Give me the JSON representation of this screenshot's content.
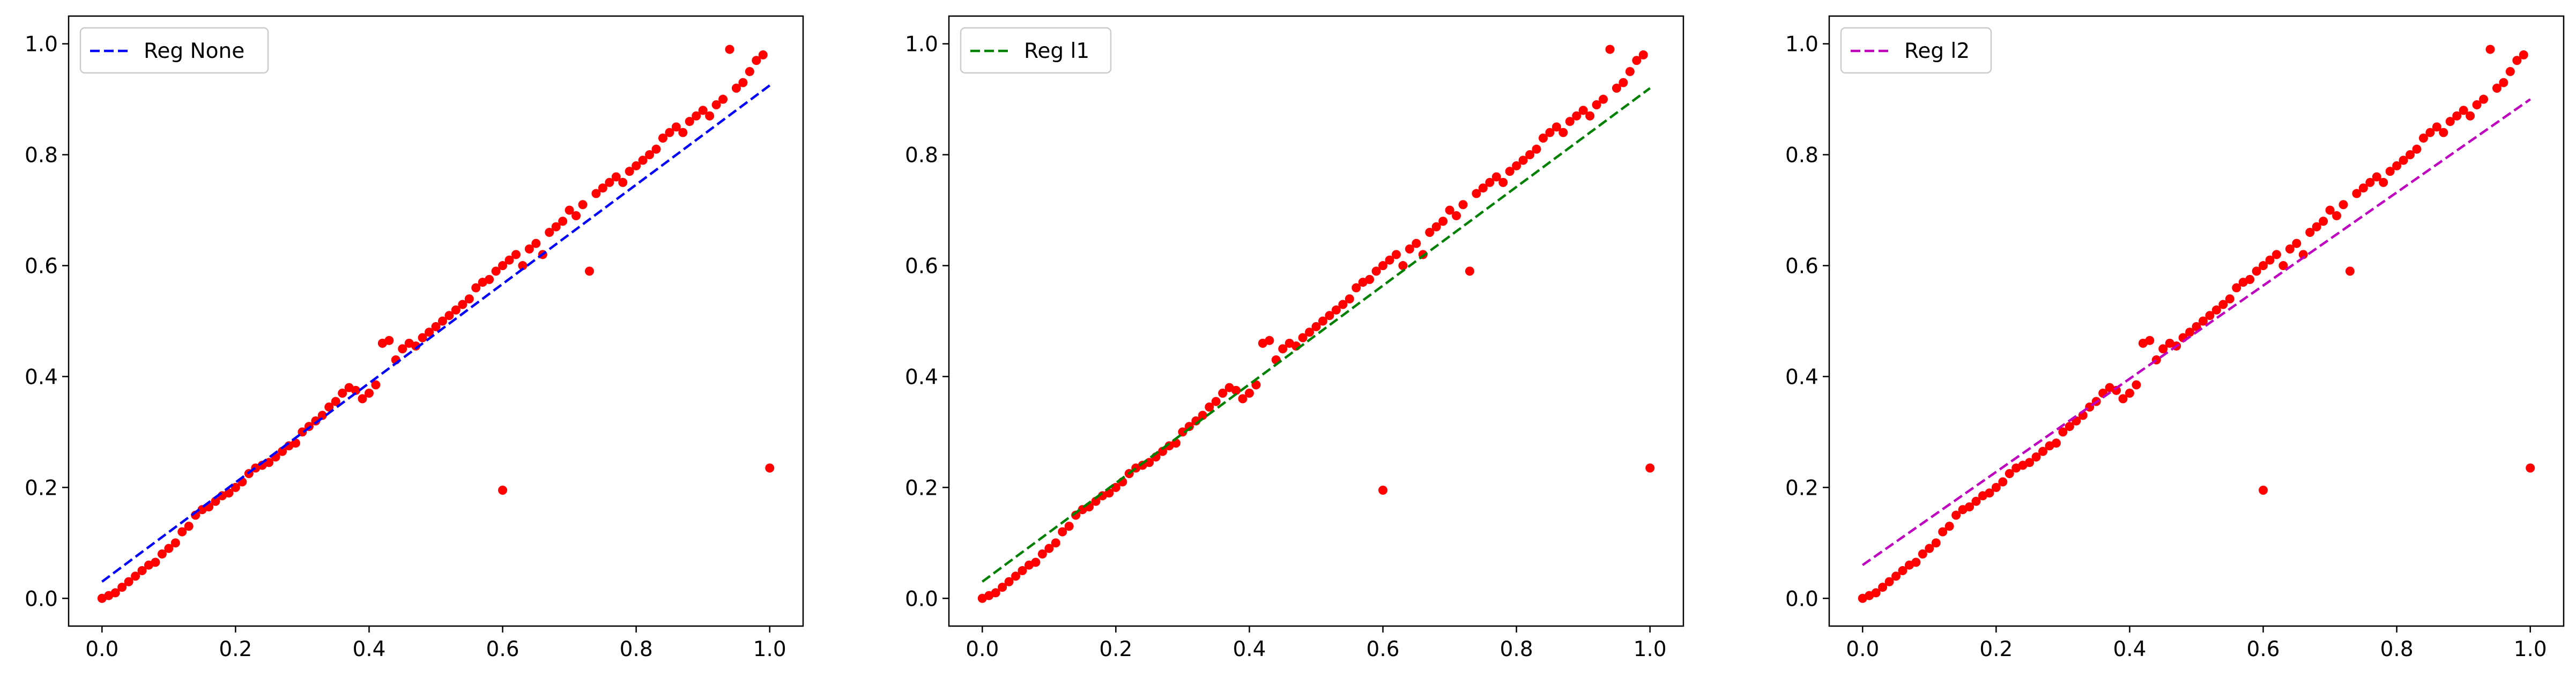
{
  "chart_data": [
    {
      "type": "scatter",
      "title": "",
      "xlabel": "",
      "ylabel": "",
      "xlim": [
        -0.05,
        1.05
      ],
      "ylim": [
        -0.05,
        1.05
      ],
      "xticks": [
        "0.0",
        "0.2",
        "0.4",
        "0.6",
        "0.8",
        "1.0"
      ],
      "yticks": [
        "0.0",
        "0.2",
        "0.4",
        "0.6",
        "0.8",
        "1.0"
      ],
      "grid": false,
      "legend_position": "upper-left",
      "points": {
        "color": "#ff0000",
        "x": [
          0.0,
          0.01,
          0.02,
          0.03,
          0.04,
          0.05,
          0.06,
          0.07,
          0.08,
          0.09,
          0.1,
          0.11,
          0.12,
          0.13,
          0.14,
          0.15,
          0.16,
          0.17,
          0.18,
          0.19,
          0.2,
          0.21,
          0.22,
          0.23,
          0.24,
          0.25,
          0.26,
          0.27,
          0.28,
          0.29,
          0.3,
          0.31,
          0.32,
          0.33,
          0.34,
          0.35,
          0.36,
          0.37,
          0.38,
          0.39,
          0.4,
          0.41,
          0.42,
          0.43,
          0.44,
          0.45,
          0.46,
          0.47,
          0.48,
          0.49,
          0.5,
          0.51,
          0.52,
          0.53,
          0.54,
          0.55,
          0.56,
          0.57,
          0.58,
          0.59,
          0.6,
          0.61,
          0.62,
          0.63,
          0.64,
          0.65,
          0.66,
          0.67,
          0.68,
          0.69,
          0.7,
          0.71,
          0.72,
          0.73,
          0.74,
          0.75,
          0.76,
          0.77,
          0.78,
          0.79,
          0.8,
          0.81,
          0.82,
          0.83,
          0.84,
          0.85,
          0.86,
          0.87,
          0.88,
          0.89,
          0.9,
          0.91,
          0.92,
          0.93,
          0.94,
          0.95,
          0.96,
          0.97,
          0.98,
          0.99,
          1.0,
          0.6
        ],
        "y": [
          0.0,
          0.005,
          0.01,
          0.02,
          0.03,
          0.04,
          0.05,
          0.06,
          0.065,
          0.08,
          0.09,
          0.1,
          0.12,
          0.13,
          0.15,
          0.16,
          0.165,
          0.175,
          0.185,
          0.19,
          0.2,
          0.21,
          0.225,
          0.235,
          0.24,
          0.245,
          0.255,
          0.265,
          0.275,
          0.28,
          0.3,
          0.31,
          0.32,
          0.33,
          0.345,
          0.355,
          0.37,
          0.38,
          0.375,
          0.36,
          0.37,
          0.385,
          0.46,
          0.465,
          0.43,
          0.45,
          0.46,
          0.455,
          0.47,
          0.48,
          0.49,
          0.5,
          0.51,
          0.52,
          0.53,
          0.54,
          0.56,
          0.57,
          0.575,
          0.59,
          0.6,
          0.61,
          0.62,
          0.6,
          0.63,
          0.64,
          0.62,
          0.66,
          0.67,
          0.68,
          0.7,
          0.69,
          0.71,
          0.59,
          0.73,
          0.74,
          0.75,
          0.76,
          0.75,
          0.77,
          0.78,
          0.79,
          0.8,
          0.81,
          0.83,
          0.84,
          0.85,
          0.84,
          0.86,
          0.87,
          0.88,
          0.87,
          0.89,
          0.9,
          0.99,
          0.92,
          0.93,
          0.95,
          0.97,
          0.98,
          0.235,
          0.195
        ]
      },
      "series": [
        {
          "name": "Reg None",
          "color": "#0000ff",
          "style": "dashed",
          "x": [
            0.0,
            1.0
          ],
          "y": [
            0.03,
            0.925
          ]
        }
      ]
    },
    {
      "type": "scatter",
      "title": "",
      "xlabel": "",
      "ylabel": "",
      "xlim": [
        -0.05,
        1.05
      ],
      "ylim": [
        -0.05,
        1.05
      ],
      "xticks": [
        "0.0",
        "0.2",
        "0.4",
        "0.6",
        "0.8",
        "1.0"
      ],
      "yticks": [
        "0.0",
        "0.2",
        "0.4",
        "0.6",
        "0.8",
        "1.0"
      ],
      "grid": false,
      "legend_position": "upper-left",
      "points": "same-as-first",
      "series": [
        {
          "name": "Reg l1",
          "color": "#008000",
          "style": "dashed",
          "x": [
            0.0,
            1.0
          ],
          "y": [
            0.03,
            0.92
          ]
        }
      ]
    },
    {
      "type": "scatter",
      "title": "",
      "xlabel": "",
      "ylabel": "",
      "xlim": [
        -0.05,
        1.05
      ],
      "ylim": [
        -0.05,
        1.05
      ],
      "xticks": [
        "0.0",
        "0.2",
        "0.4",
        "0.6",
        "0.8",
        "1.0"
      ],
      "yticks": [
        "0.0",
        "0.2",
        "0.4",
        "0.6",
        "0.8",
        "1.0"
      ],
      "grid": false,
      "legend_position": "upper-left",
      "points": "same-as-first",
      "series": [
        {
          "name": "Reg l2",
          "color": "#bf00bf",
          "style": "dashed",
          "x": [
            0.0,
            1.0
          ],
          "y": [
            0.06,
            0.9
          ]
        }
      ]
    }
  ]
}
